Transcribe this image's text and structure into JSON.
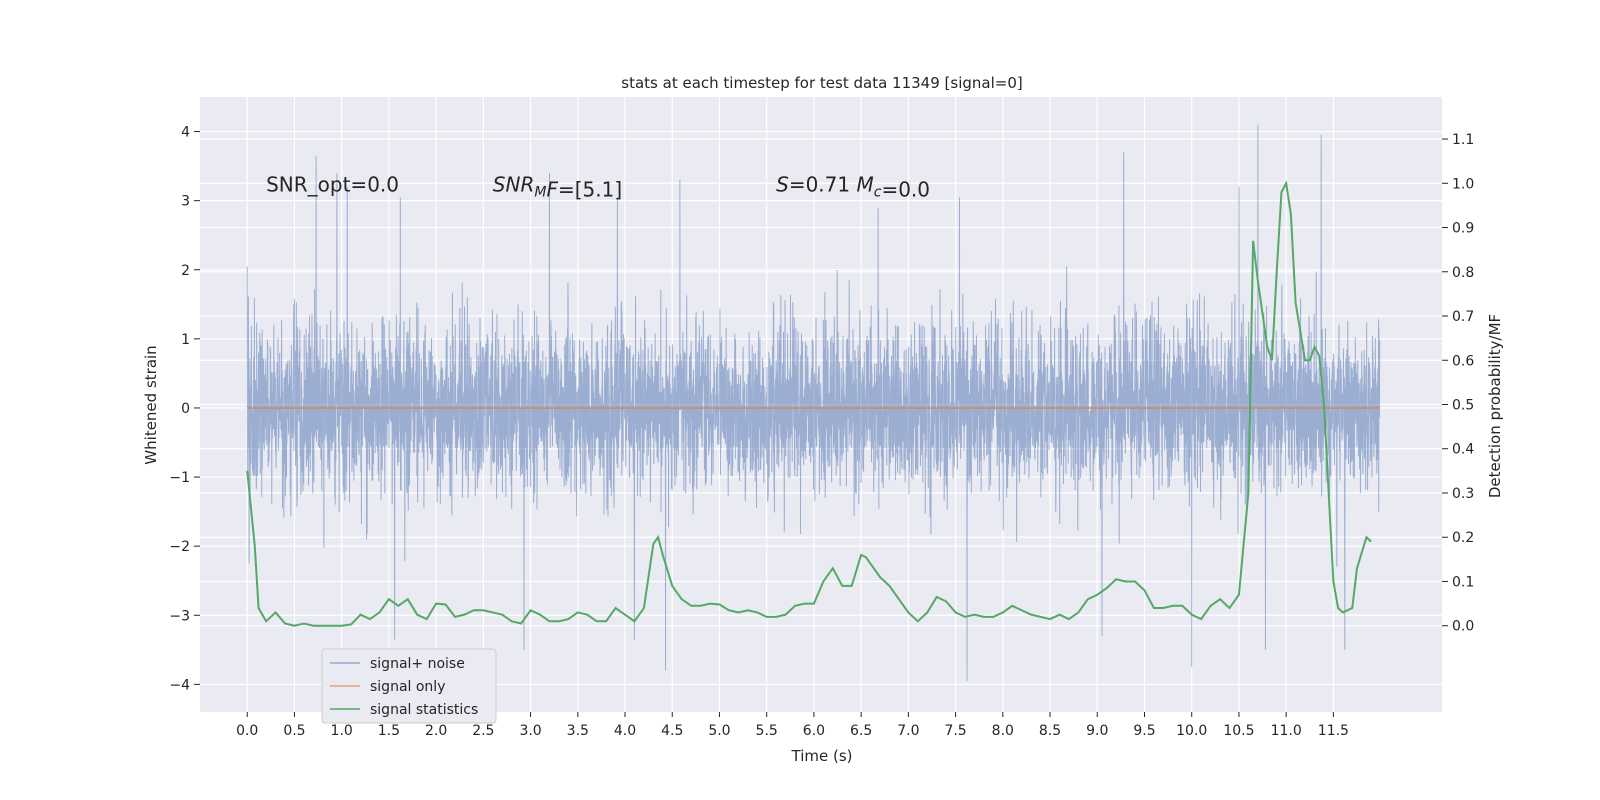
{
  "chart_data": {
    "type": "line",
    "title": "stats at each timestep for test data 11349 [signal=0]",
    "xlabel": "Time (s)",
    "ylabel": "Whitened strain",
    "y2label": "Detection probability/MF",
    "xlim": [
      -0.5,
      12.65
    ],
    "ylim": [
      -4.4,
      4.5
    ],
    "y2lim": [
      -0.195,
      1.195
    ],
    "x_ticks": [
      0.0,
      0.5,
      1.0,
      1.5,
      2.0,
      2.5,
      3.0,
      3.5,
      4.0,
      4.5,
      5.0,
      5.5,
      6.0,
      6.5,
      7.0,
      7.5,
      8.0,
      8.5,
      9.0,
      9.5,
      10.0,
      10.5,
      11.0,
      11.5
    ],
    "x_tick_labels": [
      "0.0",
      "0.5",
      "1.0",
      "1.5",
      "2.0",
      "2.5",
      "3.0",
      "3.5",
      "4.0",
      "4.5",
      "5.0",
      "5.5",
      "6.0",
      "6.5",
      "7.0",
      "7.5",
      "8.0",
      "8.5",
      "9.0",
      "9.5",
      "10.0",
      "10.5",
      "11.0",
      "11.5"
    ],
    "y_ticks": [
      -4,
      -3,
      -2,
      -1,
      0,
      1,
      2,
      3,
      4
    ],
    "y_tick_labels": [
      "−4",
      "−3",
      "−2",
      "−1",
      "0",
      "1",
      "2",
      "3",
      "4"
    ],
    "y2_ticks": [
      0.0,
      0.1,
      0.2,
      0.3,
      0.4,
      0.5,
      0.6,
      0.7,
      0.8,
      0.9,
      1.0,
      1.1
    ],
    "y2_tick_labels": [
      "0.0",
      "0.1",
      "0.2",
      "0.3",
      "0.4",
      "0.5",
      "0.6",
      "0.7",
      "0.8",
      "0.9",
      "1.0",
      "1.1"
    ],
    "grid": true,
    "legend_position": "lower-left",
    "series": [
      {
        "name": "signal+ noise",
        "color": "#4c72b0",
        "axis": "left",
        "style": "dense noisy strain trace, roughly symmetric about 0",
        "x_range": [
          0.0,
          11.99
        ],
        "typical_amplitude": [
          -1.4,
          1.4
        ],
        "max_positive_peaks": [
          {
            "x": 0.0,
            "y": 2.05
          },
          {
            "x": 0.73,
            "y": 3.65
          },
          {
            "x": 0.95,
            "y": 3.4
          },
          {
            "x": 1.06,
            "y": 3.2
          },
          {
            "x": 1.62,
            "y": 3.05
          },
          {
            "x": 3.2,
            "y": 3.4
          },
          {
            "x": 3.92,
            "y": 3.05
          },
          {
            "x": 4.58,
            "y": 3.3
          },
          {
            "x": 6.68,
            "y": 2.9
          },
          {
            "x": 7.54,
            "y": 3.05
          },
          {
            "x": 9.28,
            "y": 3.7
          },
          {
            "x": 10.5,
            "y": 3.2
          },
          {
            "x": 10.7,
            "y": 4.1
          },
          {
            "x": 11.37,
            "y": 3.95
          },
          {
            "x": 11.98,
            "y": 2.75
          }
        ],
        "max_negative_peaks": [
          {
            "x": 0.02,
            "y": -2.25
          },
          {
            "x": 1.56,
            "y": -3.35
          },
          {
            "x": 2.93,
            "y": -3.5
          },
          {
            "x": 4.1,
            "y": -3.35
          },
          {
            "x": 4.43,
            "y": -3.8
          },
          {
            "x": 7.62,
            "y": -3.95
          },
          {
            "x": 9.05,
            "y": -3.3
          },
          {
            "x": 10.0,
            "y": -3.75
          },
          {
            "x": 10.78,
            "y": -3.5
          },
          {
            "x": 11.62,
            "y": -3.5
          },
          {
            "x": 11.98,
            "y": -1.5
          }
        ]
      },
      {
        "name": "signal only",
        "color": "#dd8452",
        "axis": "left",
        "x": [
          0.0,
          11.99
        ],
        "y": [
          0.0,
          0.0
        ]
      },
      {
        "name": "signal statistics",
        "color": "#55a868",
        "axis": "right",
        "x": [
          0.0,
          0.08,
          0.12,
          0.2,
          0.3,
          0.4,
          0.5,
          0.6,
          0.7,
          0.8,
          0.9,
          1.0,
          1.1,
          1.2,
          1.3,
          1.4,
          1.5,
          1.6,
          1.7,
          1.8,
          1.9,
          2.0,
          2.1,
          2.2,
          2.3,
          2.4,
          2.5,
          2.6,
          2.7,
          2.8,
          2.9,
          3.0,
          3.1,
          3.2,
          3.3,
          3.4,
          3.5,
          3.6,
          3.7,
          3.8,
          3.9,
          4.0,
          4.1,
          4.2,
          4.3,
          4.35,
          4.4,
          4.5,
          4.6,
          4.7,
          4.8,
          4.9,
          5.0,
          5.1,
          5.2,
          5.3,
          5.4,
          5.5,
          5.6,
          5.7,
          5.8,
          5.9,
          6.0,
          6.1,
          6.2,
          6.3,
          6.4,
          6.5,
          6.55,
          6.6,
          6.7,
          6.8,
          6.9,
          7.0,
          7.1,
          7.2,
          7.3,
          7.4,
          7.5,
          7.6,
          7.7,
          7.8,
          7.9,
          8.0,
          8.1,
          8.2,
          8.3,
          8.4,
          8.5,
          8.6,
          8.7,
          8.8,
          8.9,
          9.0,
          9.1,
          9.2,
          9.3,
          9.4,
          9.5,
          9.6,
          9.7,
          9.8,
          9.9,
          10.0,
          10.1,
          10.2,
          10.3,
          10.4,
          10.5,
          10.6,
          10.65,
          10.7,
          10.8,
          10.85,
          10.9,
          10.95,
          11.0,
          11.05,
          11.1,
          11.2,
          11.25,
          11.3,
          11.35,
          11.4,
          11.45,
          11.5,
          11.55,
          11.6,
          11.7,
          11.75,
          11.85,
          11.9
        ],
        "y": [
          0.35,
          0.18,
          0.04,
          0.01,
          0.03,
          0.005,
          0.0,
          0.005,
          0.0,
          0.0,
          0.0,
          0.0,
          0.003,
          0.025,
          0.015,
          0.03,
          0.06,
          0.045,
          0.06,
          0.025,
          0.015,
          0.05,
          0.048,
          0.02,
          0.025,
          0.035,
          0.035,
          0.03,
          0.025,
          0.01,
          0.005,
          0.035,
          0.025,
          0.01,
          0.01,
          0.015,
          0.03,
          0.025,
          0.01,
          0.01,
          0.04,
          0.025,
          0.01,
          0.04,
          0.185,
          0.2,
          0.16,
          0.09,
          0.06,
          0.045,
          0.045,
          0.05,
          0.048,
          0.035,
          0.03,
          0.035,
          0.03,
          0.02,
          0.02,
          0.025,
          0.045,
          0.05,
          0.05,
          0.1,
          0.13,
          0.09,
          0.09,
          0.16,
          0.155,
          0.14,
          0.11,
          0.09,
          0.06,
          0.03,
          0.01,
          0.03,
          0.065,
          0.055,
          0.03,
          0.02,
          0.025,
          0.02,
          0.02,
          0.03,
          0.045,
          0.035,
          0.025,
          0.02,
          0.015,
          0.025,
          0.015,
          0.03,
          0.06,
          0.07,
          0.085,
          0.105,
          0.1,
          0.1,
          0.08,
          0.04,
          0.04,
          0.045,
          0.045,
          0.025,
          0.015,
          0.045,
          0.06,
          0.04,
          0.07,
          0.3,
          0.87,
          0.78,
          0.63,
          0.6,
          0.8,
          0.98,
          1.0,
          0.93,
          0.73,
          0.6,
          0.6,
          0.63,
          0.61,
          0.5,
          0.3,
          0.1,
          0.04,
          0.03,
          0.04,
          0.13,
          0.2,
          0.19
        ]
      }
    ],
    "annotations": [
      {
        "x": 0.2,
        "y": 3.25,
        "segments": [
          {
            "t": "SNR_opt=0.0",
            "i": false,
            "sub": false
          }
        ]
      },
      {
        "x": 2.6,
        "y": 3.25,
        "segments": [
          {
            "t": "SNR",
            "i": true,
            "sub": false
          },
          {
            "t": "M",
            "i": true,
            "sub": true
          },
          {
            "t": "F",
            "i": true,
            "sub": false
          },
          {
            "t": "=[5.1]",
            "i": false,
            "sub": false
          }
        ]
      },
      {
        "x": 5.6,
        "y": 3.25,
        "segments": [
          {
            "t": "S",
            "i": true,
            "sub": false
          },
          {
            "t": "=0.71   ",
            "i": false,
            "sub": false
          },
          {
            "t": "M",
            "i": true,
            "sub": false
          },
          {
            "t": "c",
            "i": true,
            "sub": true
          },
          {
            "t": "=0.0",
            "i": false,
            "sub": false
          }
        ]
      }
    ]
  }
}
